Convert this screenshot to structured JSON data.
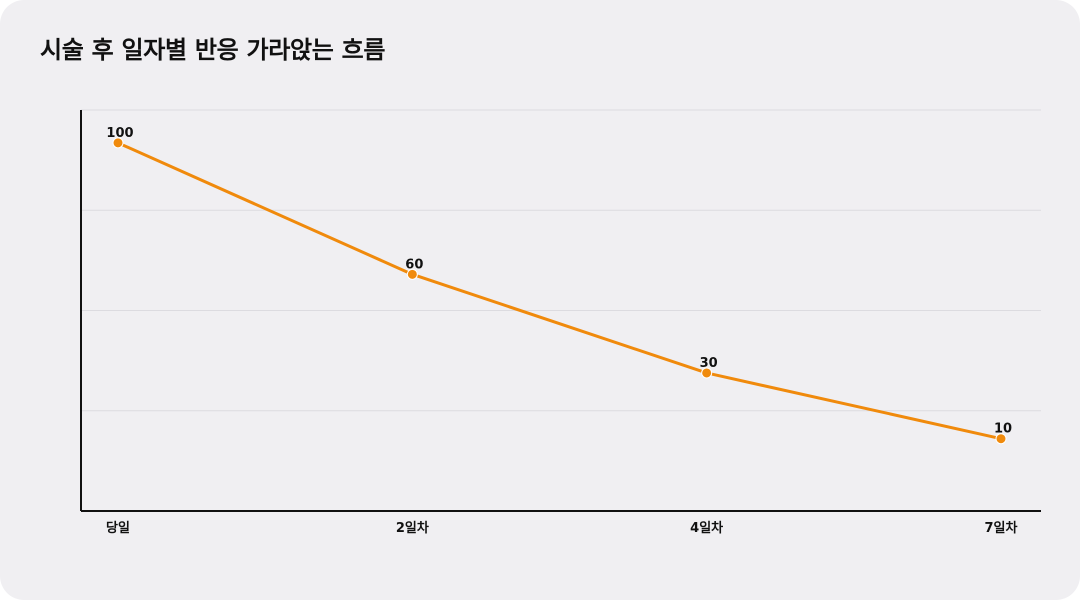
{
  "title": "시술 후 일자별 반응 가라앉는 흐름",
  "colors": {
    "background": "#f0eff2",
    "line": "#f08a0c",
    "axis": "#111111",
    "grid": "#dcdbe0"
  },
  "chart_data": {
    "type": "line",
    "categories": [
      "당일",
      "2일차",
      "4일차",
      "7일차"
    ],
    "x": [
      0,
      2,
      4,
      6
    ],
    "values": [
      100,
      60,
      30,
      10
    ],
    "data_labels": [
      "100",
      "60",
      "30",
      "10"
    ],
    "ylim": [
      -12,
      110
    ],
    "grid": true,
    "legend": "none",
    "xlabel": "",
    "ylabel": ""
  }
}
